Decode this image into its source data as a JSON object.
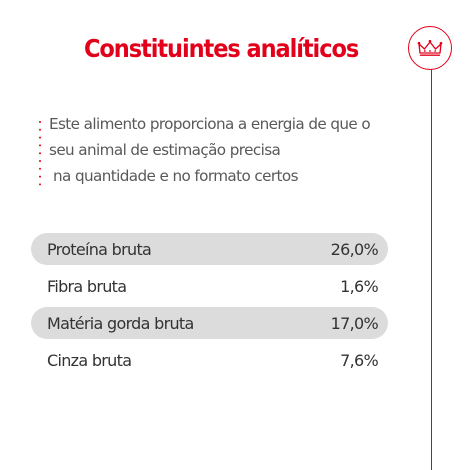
{
  "title": "Constituintes analíticos",
  "intro": {
    "lines": [
      "Este alimento proporciona a energia de que o",
      "seu animal de estimação precisa",
      "na quantidade e no formato certos"
    ]
  },
  "constituents": [
    {
      "name": "Proteína bruta",
      "value": "26,0%",
      "shaded": true
    },
    {
      "name": "Fibra bruta",
      "value": "1,6%",
      "shaded": false
    },
    {
      "name": "Matéria gorda bruta",
      "value": "17,0%",
      "shaded": true
    },
    {
      "name": "Cinza bruta",
      "value": "7,6%",
      "shaded": false
    }
  ],
  "icons": {
    "badge": "crown-icon"
  },
  "colors": {
    "brand_red": "#e2001a",
    "row_shade": "#dcdcdc",
    "intro_text": "#595959",
    "row_text": "#333333",
    "dot_red": "#e2001a"
  }
}
